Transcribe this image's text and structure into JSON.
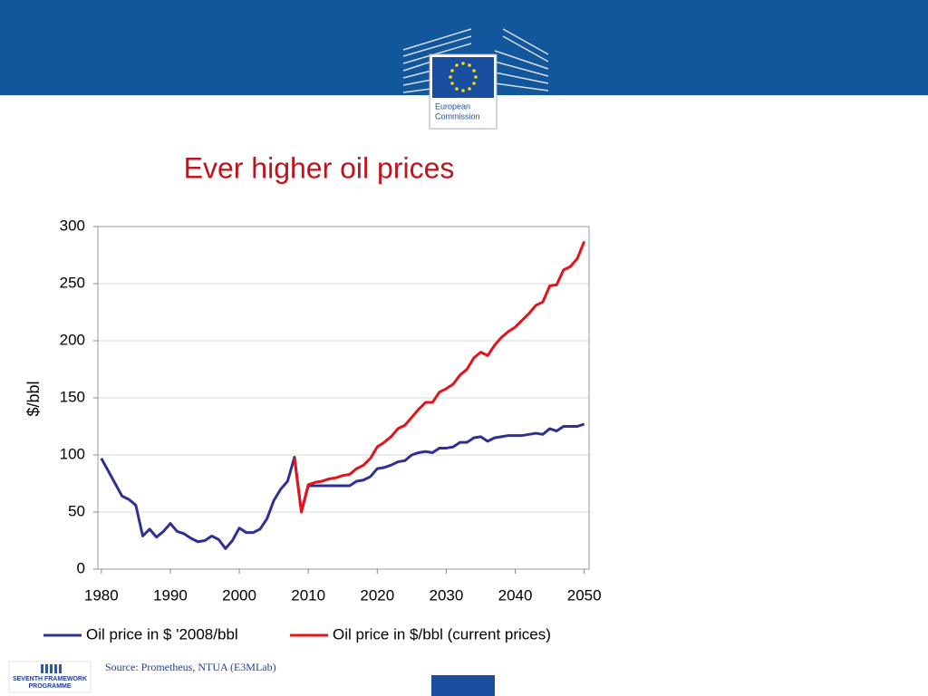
{
  "header": {
    "logo_line1": "European",
    "logo_line2": "Commission"
  },
  "chart_data": {
    "type": "line",
    "title": "Ever higher oil prices",
    "ylabel": "$/bbl",
    "x": [
      1980,
      1981,
      1982,
      1983,
      1984,
      1985,
      1986,
      1987,
      1988,
      1989,
      1990,
      1991,
      1992,
      1993,
      1994,
      1995,
      1996,
      1997,
      1998,
      1999,
      2000,
      2001,
      2002,
      2003,
      2004,
      2005,
      2006,
      2007,
      2008,
      2009,
      2010,
      2011,
      2012,
      2013,
      2014,
      2015,
      2016,
      2017,
      2018,
      2019,
      2020,
      2021,
      2022,
      2023,
      2024,
      2025,
      2026,
      2027,
      2028,
      2029,
      2030,
      2031,
      2032,
      2033,
      2034,
      2035,
      2036,
      2037,
      2038,
      2039,
      2040,
      2041,
      2042,
      2043,
      2044,
      2045,
      2046,
      2047,
      2048,
      2049,
      2050
    ],
    "series": [
      {
        "name": "Oil price in $ '2008/bbl",
        "color": "#2e3192",
        "values": [
          97,
          86,
          75,
          64,
          61,
          56,
          29,
          35,
          28,
          33,
          40,
          33,
          31,
          27,
          24,
          25,
          29,
          26,
          18,
          25,
          36,
          32,
          32,
          35,
          44,
          60,
          70,
          77,
          98,
          50,
          73,
          73,
          73,
          73,
          73,
          73,
          73,
          77,
          78,
          81,
          88,
          89,
          91,
          94,
          95,
          100,
          102,
          103,
          102,
          106,
          106,
          107,
          111,
          111,
          115,
          116,
          112,
          115,
          116,
          117,
          117,
          117,
          118,
          119,
          118,
          123,
          121,
          125,
          125,
          125,
          127
        ]
      },
      {
        "name": "Oil price in $/bbl (current prices)",
        "color": "#e3131b",
        "values": [
          null,
          null,
          null,
          null,
          null,
          null,
          null,
          null,
          null,
          null,
          null,
          null,
          null,
          null,
          null,
          null,
          null,
          null,
          null,
          null,
          null,
          null,
          null,
          null,
          null,
          null,
          null,
          null,
          97,
          50,
          74,
          76,
          77,
          79,
          80,
          82,
          83,
          88,
          91,
          97,
          107,
          111,
          116,
          123,
          126,
          133,
          140,
          146,
          146,
          155,
          158,
          162,
          170,
          175,
          185,
          190,
          187,
          196,
          203,
          208,
          212,
          218,
          224,
          231,
          234,
          248,
          249,
          262,
          265,
          272,
          287
        ]
      }
    ],
    "xlim": [
      1979.5,
      2050.7
    ],
    "xticks": [
      1980,
      1990,
      2000,
      2010,
      2020,
      2030,
      2040,
      2050
    ],
    "ylim": [
      0,
      300
    ],
    "yticks": [
      0,
      50,
      100,
      150,
      200,
      250,
      300
    ],
    "grid": true,
    "source": "Source: Prometheus, NTUA (E3MLab)"
  },
  "footer": {
    "fp7_line1": "SEVENTH FRAMEWORK",
    "fp7_line2": "PROGRAMME"
  }
}
